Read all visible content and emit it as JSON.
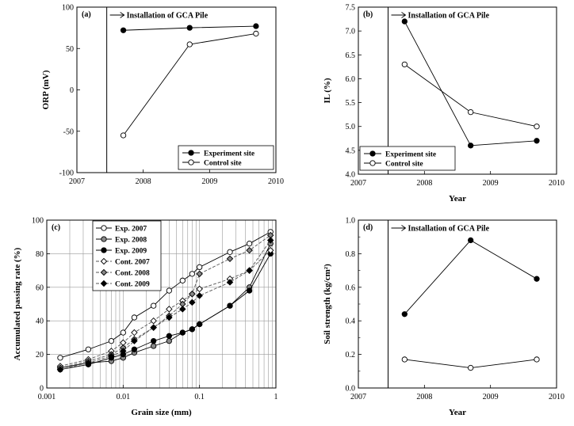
{
  "chart_data": [
    {
      "type": "line",
      "panel_label": "(a)",
      "xlabel": "",
      "ylabel": "ORP (mV)",
      "xlim": [
        2007,
        2010
      ],
      "ylim": [
        -100,
        100
      ],
      "xticks": [
        2007,
        2008,
        2009,
        2010
      ],
      "yticks": [
        -100,
        -50,
        0,
        50,
        100
      ],
      "annotation": "Installation of GCA Pile",
      "annotation_x": 2007.45,
      "legend_position": "bottom-right",
      "series": [
        {
          "name": "Experiment site",
          "marker": "filled-circle",
          "x": [
            2007.7,
            2008.7,
            2009.7
          ],
          "y": [
            72,
            75,
            77
          ]
        },
        {
          "name": "Control site",
          "marker": "open-circle",
          "x": [
            2007.7,
            2008.7,
            2009.7
          ],
          "y": [
            -55,
            55,
            68
          ]
        }
      ]
    },
    {
      "type": "line",
      "panel_label": "(b)",
      "xlabel": "Year",
      "ylabel": "IL (%)",
      "xlim": [
        2007,
        2010
      ],
      "ylim": [
        4.0,
        7.5
      ],
      "xticks": [
        2007,
        2008,
        2009,
        2010
      ],
      "yticks": [
        4.0,
        4.5,
        5.0,
        5.5,
        6.0,
        6.5,
        7.0,
        7.5
      ],
      "annotation": "Installation of GCA Pile",
      "annotation_x": 2007.45,
      "legend_position": "bottom-left",
      "series": [
        {
          "name": "Experiment site",
          "marker": "filled-circle",
          "x": [
            2007.7,
            2008.7,
            2009.7
          ],
          "y": [
            7.2,
            4.6,
            4.7
          ]
        },
        {
          "name": "Control site",
          "marker": "open-circle",
          "x": [
            2007.7,
            2008.7,
            2009.7
          ],
          "y": [
            6.3,
            5.3,
            5.0
          ]
        }
      ]
    },
    {
      "type": "line",
      "panel_label": "(c)",
      "xlabel": "Grain size (mm)",
      "ylabel": "Accumulated passing rate (%)",
      "xscale": "log",
      "xlim": [
        0.001,
        1
      ],
      "ylim": [
        0,
        100
      ],
      "xticks": [
        0.001,
        0.01,
        0.1,
        1
      ],
      "xtick_labels": [
        "0.001",
        "0.01",
        "0.1",
        "1"
      ],
      "yticks": [
        0,
        20,
        40,
        60,
        80,
        100
      ],
      "grid": true,
      "legend_position": "top-left",
      "series": [
        {
          "name": "Exp. 2007",
          "marker": "open-circle",
          "dashed": false,
          "x": [
            0.0015,
            0.0035,
            0.007,
            0.01,
            0.014,
            0.025,
            0.04,
            0.06,
            0.08,
            0.1,
            0.25,
            0.45,
            0.85
          ],
          "y": [
            18,
            23,
            28,
            33,
            42,
            49,
            58,
            64,
            68,
            72,
            81,
            86,
            93
          ]
        },
        {
          "name": "Exp. 2008",
          "marker": "gray-circle",
          "dashed": false,
          "x": [
            0.0015,
            0.0035,
            0.007,
            0.01,
            0.014,
            0.025,
            0.04,
            0.06,
            0.08,
            0.1,
            0.25,
            0.45,
            0.85
          ],
          "y": [
            12,
            15,
            16,
            18,
            21,
            25,
            28,
            33,
            35,
            38,
            49,
            60,
            86
          ]
        },
        {
          "name": "Exp. 2009",
          "marker": "filled-circle",
          "dashed": false,
          "x": [
            0.0015,
            0.0035,
            0.007,
            0.01,
            0.014,
            0.025,
            0.04,
            0.06,
            0.08,
            0.1,
            0.25,
            0.45,
            0.85
          ],
          "y": [
            11,
            14,
            18,
            20,
            23,
            28,
            31,
            33,
            35,
            38,
            49,
            58,
            80
          ]
        },
        {
          "name": "Cont. 2007",
          "marker": "open-diamond",
          "dashed": true,
          "x": [
            0.0015,
            0.0035,
            0.007,
            0.01,
            0.014,
            0.025,
            0.04,
            0.06,
            0.08,
            0.1,
            0.25,
            0.45,
            0.85
          ],
          "y": [
            13,
            17,
            22,
            27,
            33,
            40,
            47,
            52,
            56,
            59,
            65,
            70,
            82
          ]
        },
        {
          "name": "Cont. 2008",
          "marker": "gray-diamond",
          "dashed": true,
          "x": [
            0.0015,
            0.0035,
            0.007,
            0.01,
            0.014,
            0.025,
            0.04,
            0.06,
            0.08,
            0.1,
            0.25,
            0.45,
            0.85
          ],
          "y": [
            12,
            16,
            20,
            24,
            29,
            36,
            43,
            50,
            56,
            68,
            77,
            82,
            91
          ]
        },
        {
          "name": "Cont. 2009",
          "marker": "filled-diamond",
          "dashed": true,
          "x": [
            0.0015,
            0.0035,
            0.007,
            0.01,
            0.014,
            0.025,
            0.04,
            0.06,
            0.08,
            0.1,
            0.25,
            0.45,
            0.85
          ],
          "y": [
            11,
            15,
            19,
            22,
            28,
            36,
            42,
            47,
            51,
            55,
            63,
            70,
            88
          ]
        }
      ]
    },
    {
      "type": "line",
      "panel_label": "(d)",
      "xlabel": "Year",
      "ylabel": "Soil strength (kg/cm²)",
      "xlim": [
        2007,
        2010
      ],
      "ylim": [
        0.0,
        1.0
      ],
      "xticks": [
        2007,
        2008,
        2009,
        2010
      ],
      "yticks": [
        0.0,
        0.2,
        0.4,
        0.6,
        0.8,
        1.0
      ],
      "ytick_labels": [
        "0.0",
        "0.2",
        "0.4",
        "0.6",
        "0.8",
        "1.0"
      ],
      "annotation": "Installation of GCA Pile",
      "annotation_x": 2007.45,
      "series": [
        {
          "marker": "filled-circle",
          "x": [
            2007.7,
            2008.7,
            2009.7
          ],
          "y": [
            0.44,
            0.88,
            0.65
          ]
        },
        {
          "marker": "open-circle",
          "x": [
            2007.7,
            2008.7,
            2009.7
          ],
          "y": [
            0.17,
            0.12,
            0.17
          ]
        }
      ]
    }
  ]
}
